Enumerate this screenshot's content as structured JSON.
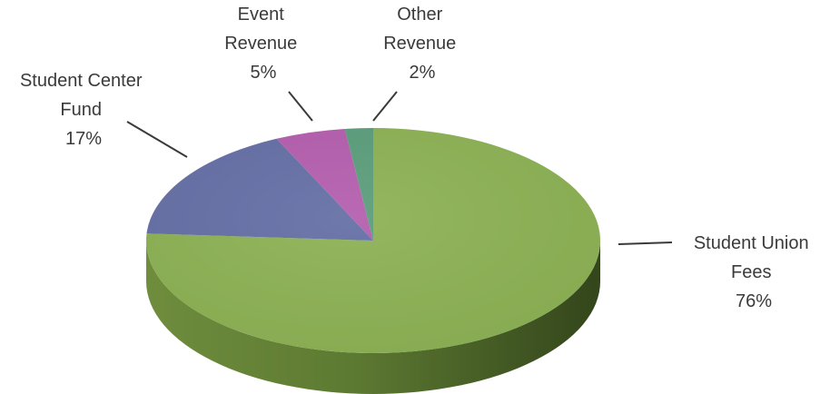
{
  "chart_data": {
    "type": "pie",
    "variant": "3d",
    "title": "",
    "slices": [
      {
        "label_lines": [
          "Student Union",
          "Fees"
        ],
        "percent_label": "76%",
        "value": 76,
        "color": "#8db255"
      },
      {
        "label_lines": [
          "Student Center",
          "Fund"
        ],
        "percent_label": "17%",
        "value": 17,
        "color": "#6670a6"
      },
      {
        "label_lines": [
          "Event",
          "Revenue"
        ],
        "percent_label": "5%",
        "value": 5,
        "color": "#b55fae"
      },
      {
        "label_lines": [
          "Other",
          "Revenue"
        ],
        "percent_label": "2%",
        "value": 2,
        "color": "#5c9e7c"
      }
    ]
  }
}
